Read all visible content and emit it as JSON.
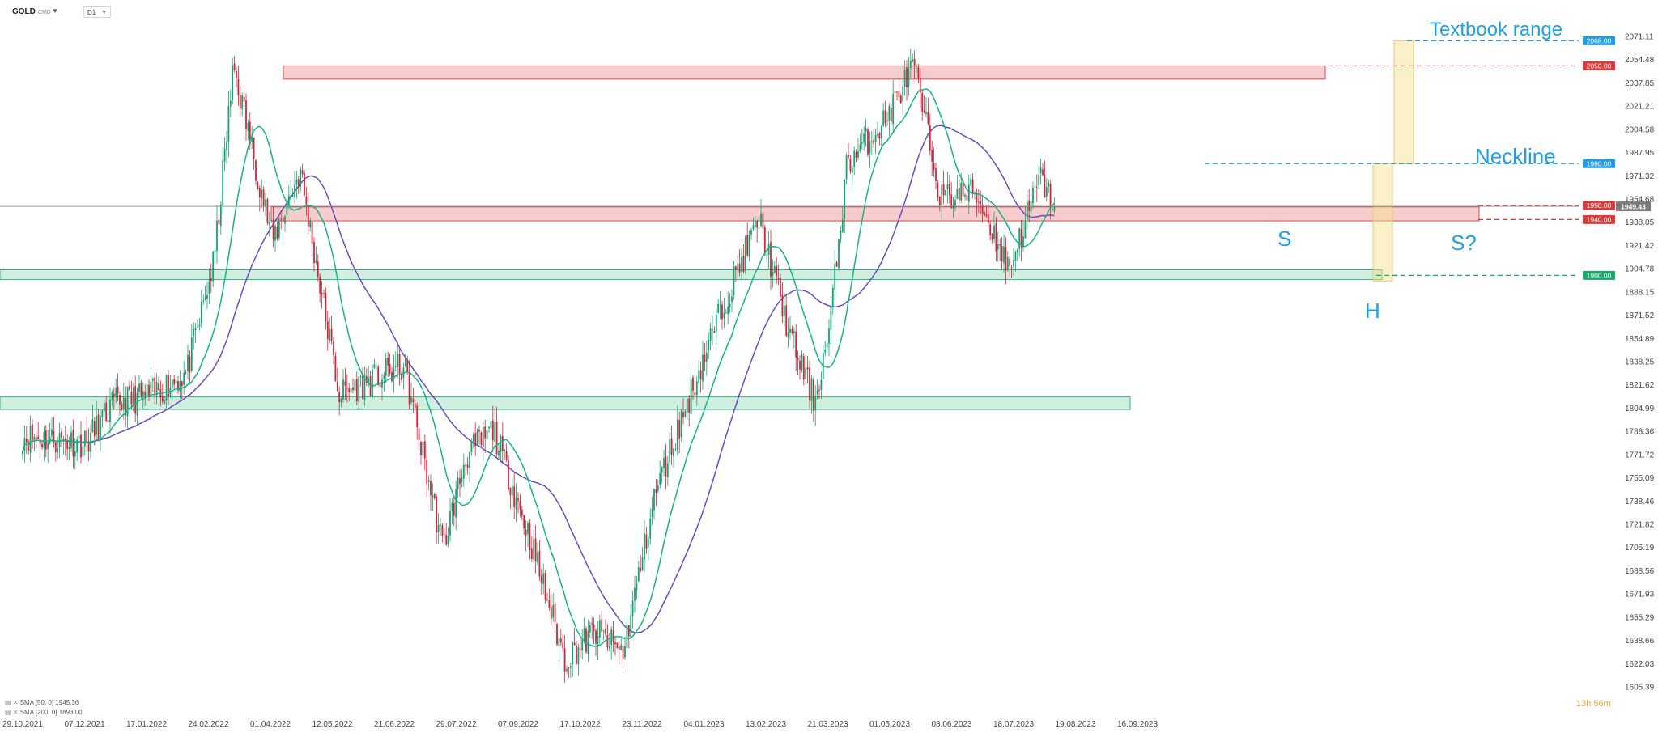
{
  "header": {
    "symbol": "GOLD",
    "symbol_suffix": "CMD",
    "timeframe": "D1"
  },
  "legend": [
    {
      "text": "SMA [50, 0] 1945.36",
      "color": "#14b487"
    },
    {
      "text": "SMA [200, 0] 1893.00",
      "color": "#6a4bc4"
    }
  ],
  "countdown": {
    "hours": "13h",
    "minutes": "56m"
  },
  "chart_data": {
    "type": "candlestick",
    "title": "",
    "y_axis_ticks": [
      2071.11,
      2054.48,
      2037.85,
      2021.21,
      2004.58,
      1987.95,
      1971.32,
      1954.68,
      1938.05,
      1921.42,
      1904.78,
      1888.15,
      1871.52,
      1854.89,
      1838.25,
      1821.62,
      1804.99,
      1788.36,
      1771.72,
      1755.09,
      1738.46,
      1721.82,
      1705.19,
      1688.56,
      1671.93,
      1655.29,
      1638.66,
      1622.03,
      1605.39
    ],
    "x_axis_ticks": [
      "29.10.2021",
      "07.12.2021",
      "17.01.2022",
      "24.02.2022",
      "01.04.2022",
      "12.05.2022",
      "21.06.2022",
      "29.07.2022",
      "07.09.2022",
      "17.10.2022",
      "23.11.2022",
      "04.01.2023",
      "13.02.2023",
      "21.03.2023",
      "01.05.2023",
      "08.06.2023",
      "18.07.2023",
      "19.08.2023",
      "16.09.2023"
    ],
    "ylim": [
      1605.39,
      2071.11
    ],
    "price_path": [
      [
        "29.10.2021",
        1785
      ],
      [
        "07.12.2021",
        1780
      ],
      [
        "24.12.2021",
        1808
      ],
      [
        "17.01.2022",
        1815
      ],
      [
        "07.02.2022",
        1830
      ],
      [
        "24.02.2022",
        1910
      ],
      [
        "08.03.2022",
        2050
      ],
      [
        "01.04.2022",
        1925
      ],
      [
        "18.04.2022",
        1975
      ],
      [
        "12.05.2022",
        1815
      ],
      [
        "21.06.2022",
        1835
      ],
      [
        "15.07.2022",
        1705
      ],
      [
        "29.07.2022",
        1770
      ],
      [
        "15.08.2022",
        1790
      ],
      [
        "07.09.2022",
        1710
      ],
      [
        "28.09.2022",
        1625
      ],
      [
        "17.10.2022",
        1645
      ],
      [
        "03.11.2022",
        1630
      ],
      [
        "23.11.2022",
        1745
      ],
      [
        "13.12.2022",
        1810
      ],
      [
        "04.01.2023",
        1880
      ],
      [
        "26.01.2023",
        1940
      ],
      [
        "13.02.2023",
        1860
      ],
      [
        "01.03.2023",
        1810
      ],
      [
        "10.03.2023",
        1860
      ],
      [
        "21.03.2023",
        1980
      ],
      [
        "13.04.2023",
        2010
      ],
      [
        "01.05.2023",
        2050
      ],
      [
        "18.05.2023",
        1955
      ],
      [
        "08.06.2023",
        1960
      ],
      [
        "29.06.2023",
        1905
      ],
      [
        "18.07.2023",
        1970
      ],
      [
        "27.07.2023",
        1949.43
      ]
    ],
    "last_price": 1949.43,
    "series": [
      {
        "name": "SMA [50, 0] 1945.36",
        "color": "#14b487"
      },
      {
        "name": "SMA [200, 0] 1893.00",
        "color": "#6a4bc4"
      }
    ],
    "levels": [
      {
        "value": "2068.00",
        "color": "#1e9be9"
      },
      {
        "value": "2050.00",
        "color": "#dd3b3b"
      },
      {
        "value": "1980.00",
        "color": "#1e9be9"
      },
      {
        "value": "1950.00",
        "color": "#dd3b3b"
      },
      {
        "value": "1940.00",
        "color": "#dd3b3b"
      },
      {
        "value": "1900.00",
        "color": "#17a86a"
      }
    ],
    "annotations": [
      "Textbook range",
      "Neckline",
      "S",
      "H",
      "S?"
    ],
    "bull_color": "#15a271",
    "bear_color": "#d4243a"
  }
}
